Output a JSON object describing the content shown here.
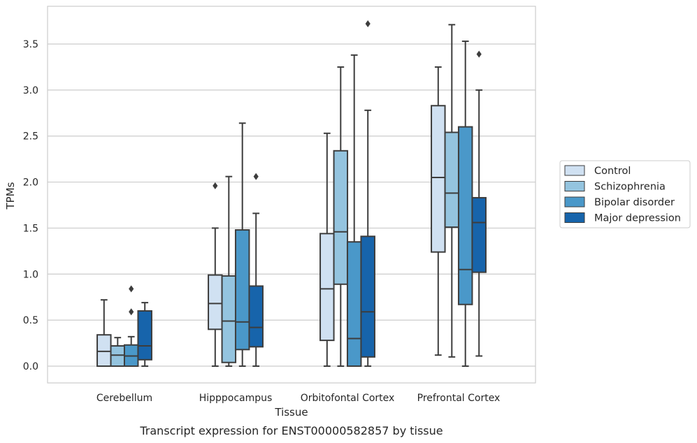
{
  "caption": "Transcript expression for ENST00000582857 by tissue",
  "chart_data": {
    "type": "box",
    "xlabel": "Tissue",
    "ylabel": "TPMs",
    "ylim": [
      -0.18,
      3.92
    ],
    "yticks": [
      0.0,
      0.5,
      1.0,
      1.5,
      2.0,
      2.5,
      3.0,
      3.5
    ],
    "ytick_labels": [
      "0.0",
      "0.5",
      "1.0",
      "1.5",
      "2.0",
      "2.5",
      "3.0",
      "3.5"
    ],
    "grid": "horizontal",
    "legend_position": "right",
    "categories": [
      "Cerebellum",
      "Hipppocampus",
      "Orbitofontal Cortex",
      "Prefrontal Cortex"
    ],
    "series": [
      {
        "name": "Control",
        "color": "#d0e1f2",
        "boxes": [
          {
            "whislo": 0.0,
            "q1": 0.0,
            "med": 0.16,
            "q3": 0.34,
            "whishi": 0.72,
            "fliers": []
          },
          {
            "whislo": 0.0,
            "q1": 0.4,
            "med": 0.68,
            "q3": 0.99,
            "whishi": 1.5,
            "fliers": [
              1.96
            ]
          },
          {
            "whislo": 0.0,
            "q1": 0.28,
            "med": 0.84,
            "q3": 1.44,
            "whishi": 2.53,
            "fliers": []
          },
          {
            "whislo": 0.12,
            "q1": 1.24,
            "med": 2.05,
            "q3": 2.83,
            "whishi": 3.25,
            "fliers": []
          }
        ]
      },
      {
        "name": "Schizophrenia",
        "color": "#94c4df",
        "boxes": [
          {
            "whislo": 0.0,
            "q1": 0.0,
            "med": 0.12,
            "q3": 0.22,
            "whishi": 0.31,
            "fliers": []
          },
          {
            "whislo": 0.0,
            "q1": 0.04,
            "med": 0.49,
            "q3": 0.98,
            "whishi": 2.06,
            "fliers": []
          },
          {
            "whislo": 0.0,
            "q1": 0.89,
            "med": 1.46,
            "q3": 2.34,
            "whishi": 3.25,
            "fliers": []
          },
          {
            "whislo": 0.1,
            "q1": 1.51,
            "med": 1.88,
            "q3": 2.54,
            "whishi": 3.71,
            "fliers": []
          }
        ]
      },
      {
        "name": "Bipolar disorder",
        "color": "#4a98c9",
        "boxes": [
          {
            "whislo": 0.0,
            "q1": 0.0,
            "med": 0.11,
            "q3": 0.23,
            "whishi": 0.32,
            "fliers": [
              0.59,
              0.84
            ]
          },
          {
            "whislo": 0.0,
            "q1": 0.18,
            "med": 0.48,
            "q3": 1.48,
            "whishi": 2.64,
            "fliers": []
          },
          {
            "whislo": 0.0,
            "q1": 0.0,
            "med": 0.3,
            "q3": 1.35,
            "whishi": 3.38,
            "fliers": []
          },
          {
            "whislo": 0.0,
            "q1": 0.67,
            "med": 1.05,
            "q3": 2.6,
            "whishi": 3.53,
            "fliers": []
          }
        ]
      },
      {
        "name": "Major depression",
        "color": "#1764ab",
        "boxes": [
          {
            "whislo": 0.0,
            "q1": 0.07,
            "med": 0.22,
            "q3": 0.6,
            "whishi": 0.69,
            "fliers": []
          },
          {
            "whislo": 0.0,
            "q1": 0.21,
            "med": 0.42,
            "q3": 0.87,
            "whishi": 1.66,
            "fliers": [
              2.06
            ]
          },
          {
            "whislo": 0.0,
            "q1": 0.1,
            "med": 0.59,
            "q3": 1.41,
            "whishi": 2.78,
            "fliers": [
              3.72
            ]
          },
          {
            "whislo": 0.11,
            "q1": 1.02,
            "med": 1.56,
            "q3": 1.83,
            "whishi": 3.0,
            "fliers": [
              3.39
            ]
          }
        ]
      }
    ]
  }
}
